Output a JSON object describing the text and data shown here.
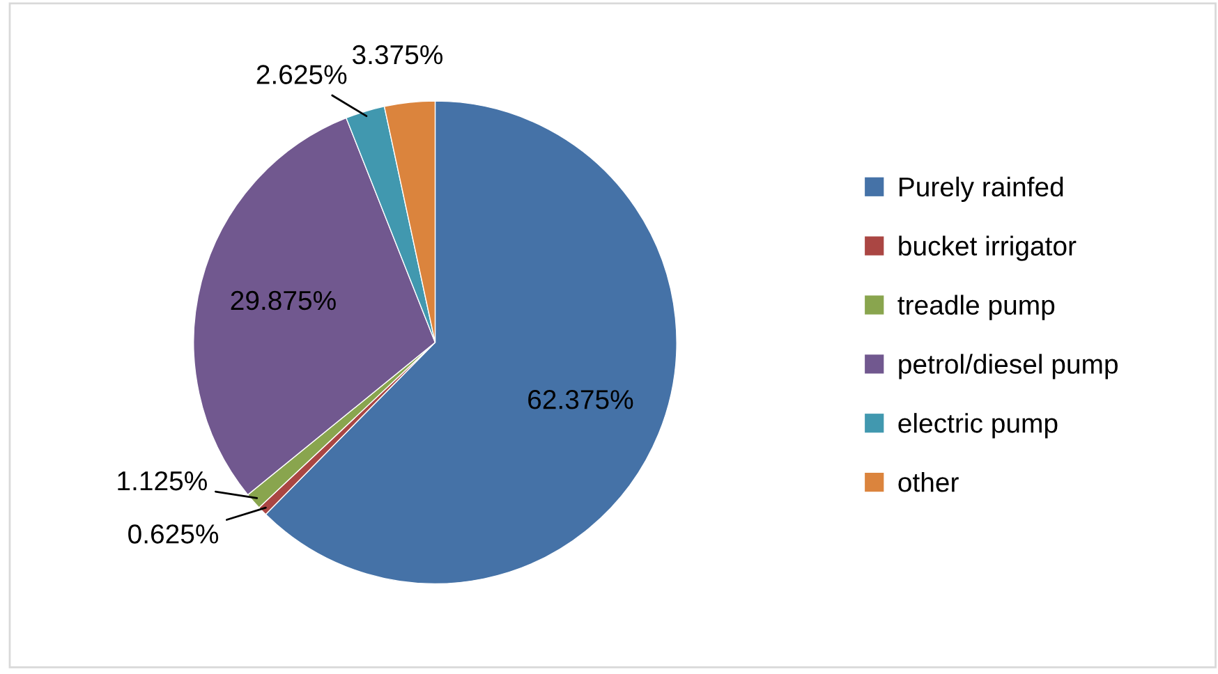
{
  "chart_data": {
    "type": "pie",
    "categories": [
      "Purely rainfed",
      "bucket irrigator",
      "treadle pump",
      "petrol/diesel pump",
      "electric pump",
      "other"
    ],
    "values": [
      62.375,
      0.625,
      1.125,
      29.875,
      2.625,
      3.375
    ],
    "colors": [
      "#4572a7",
      "#aa4643",
      "#89a54e",
      "#71588f",
      "#4198af",
      "#db843d"
    ],
    "value_labels": [
      "62.375%",
      "0.625%",
      "1.125%",
      "29.875%",
      "2.625%",
      "3.375%"
    ],
    "legend": "right"
  }
}
